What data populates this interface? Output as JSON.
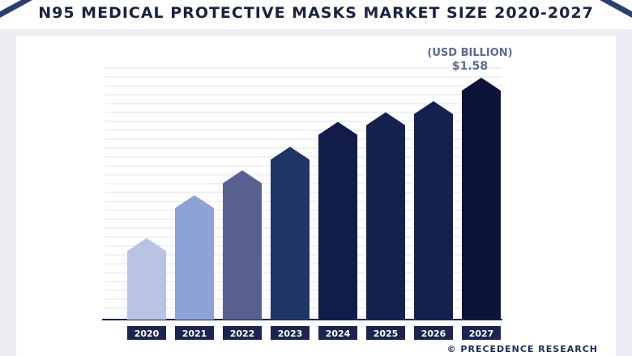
{
  "header": {
    "title": "N95 MEDICAL PROTECTIVE MASKS MARKET SIZE 2020-2027"
  },
  "footer": {
    "brand": "© PRECEDENCE RESEARCH"
  },
  "chart_data": {
    "type": "bar",
    "unit_label": "(USD BILLION)",
    "categories": [
      "2020",
      "2021",
      "2022",
      "2023",
      "2024",
      "2025",
      "2026",
      "2027"
    ],
    "values": [
      0.59,
      0.9,
      1.08,
      1.25,
      1.43,
      1.5,
      1.58,
      1.75
    ],
    "value_label": "$1.58",
    "grid": true,
    "colors": [
      "#b9c3e2",
      "#8fa2d6",
      "#57608e",
      "#1f3563",
      "#111c48",
      "#15214c",
      "#15214c",
      "#0c1338"
    ],
    "category_label_bg": "#1c2550",
    "category_label_fg": "#ffffff"
  }
}
